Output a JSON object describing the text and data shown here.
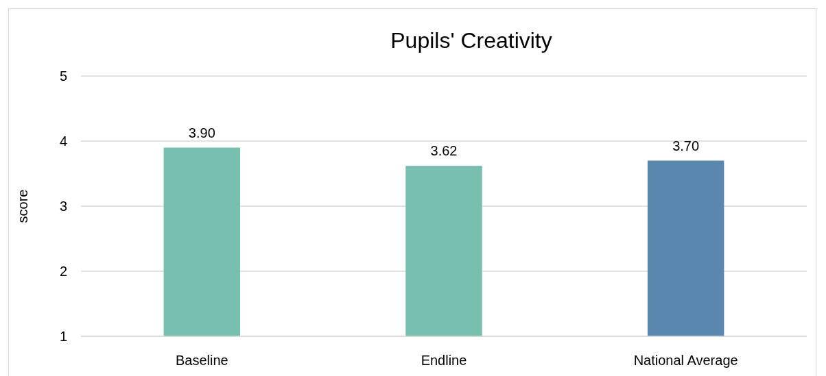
{
  "chart_data": {
    "type": "bar",
    "title": "Pupils' Creativity",
    "ylabel": "score",
    "categories": [
      "Baseline",
      "Endline",
      "National Average"
    ],
    "values": [
      3.9,
      3.62,
      3.7
    ],
    "colors": [
      "#79bfb0",
      "#79bfb0",
      "#5a87ad"
    ],
    "value_labels": [
      "3.90",
      "3.62",
      "3.70"
    ],
    "ylim": [
      1,
      5
    ],
    "yticks": [
      1,
      2,
      3,
      4,
      5
    ],
    "grid": "y"
  }
}
